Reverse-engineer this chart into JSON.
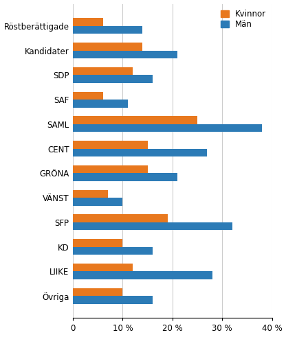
{
  "categories": [
    "Röstberättigade",
    "Kandidater",
    "SDP",
    "SAF",
    "SAML",
    "CENT",
    "GRÖNA",
    "VÄNST",
    "SFP",
    "KD",
    "LIIKE",
    "Övriga"
  ],
  "kvinnor": [
    6,
    14,
    12,
    6,
    25,
    15,
    15,
    7,
    19,
    10,
    12,
    10
  ],
  "man": [
    14,
    21,
    16,
    11,
    38,
    27,
    21,
    10,
    32,
    16,
    28,
    16
  ],
  "color_kvinnor": "#E8781E",
  "color_man": "#2C7BB6",
  "legend_kvinnor": "Kvinnor",
  "legend_man": "Män",
  "xlim": [
    0,
    40
  ],
  "xticks": [
    0,
    10,
    20,
    30,
    40
  ],
  "xticklabels": [
    "0",
    "10 %",
    "20 %",
    "30 %",
    "40 %"
  ],
  "bar_height": 0.32,
  "background_color": "#ffffff",
  "grid_color": "#cccccc",
  "label_fontsize": 8.5
}
